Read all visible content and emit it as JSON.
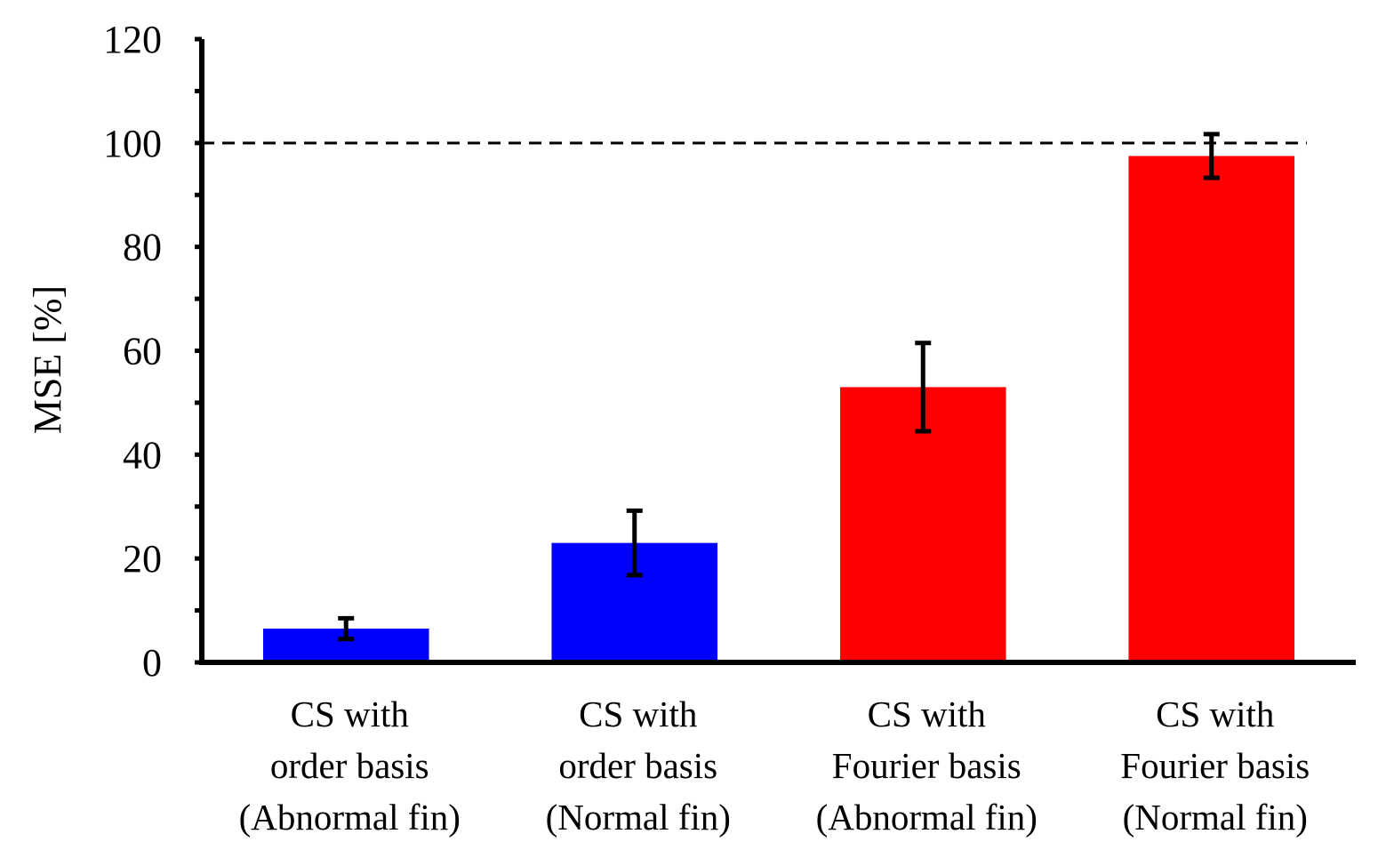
{
  "chart_data": {
    "type": "bar",
    "title": "",
    "xlabel": "",
    "ylabel": "MSE [%]",
    "ylim": [
      0,
      120
    ],
    "yticks": [
      0,
      20,
      40,
      60,
      80,
      100,
      120
    ],
    "grid": false,
    "legend": "none",
    "reference_line": {
      "y": 100,
      "style": "dashed"
    },
    "categories": [
      [
        "CS with",
        "order basis",
        "(Abnormal fin)"
      ],
      [
        "CS with",
        "order basis",
        "(Normal fin)"
      ],
      [
        "CS with",
        "Fourier basis",
        "(Abnormal fin)"
      ],
      [
        "CS with",
        "Fourier basis",
        "(Normal fin)"
      ]
    ],
    "values": [
      6.5,
      23.0,
      53.0,
      97.5
    ],
    "errors": [
      2.0,
      6.2,
      8.5,
      4.2
    ],
    "colors": [
      "#0000ff",
      "#0000ff",
      "#ff0000",
      "#ff0000"
    ]
  }
}
